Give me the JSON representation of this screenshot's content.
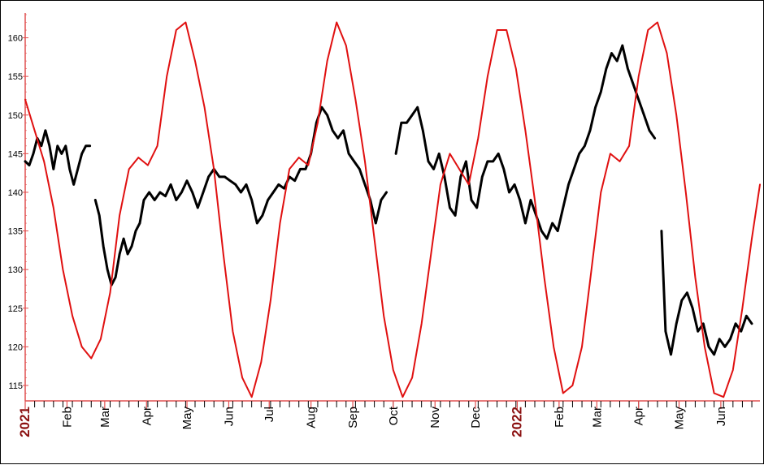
{
  "chart_data": {
    "type": "line",
    "title": "",
    "xlabel": "",
    "ylabel": "",
    "ylim": [
      113,
      163
    ],
    "yticks": [
      115,
      120,
      125,
      130,
      135,
      140,
      145,
      150,
      155,
      160
    ],
    "x_tick_labels": [
      {
        "label": "2021",
        "date": "2021-01-01",
        "year": true
      },
      {
        "label": "Feb",
        "date": "2021-02-01"
      },
      {
        "label": "Mar",
        "date": "2021-03-01"
      },
      {
        "label": "Apr",
        "date": "2021-04-01"
      },
      {
        "label": "May",
        "date": "2021-05-01"
      },
      {
        "label": "Jun",
        "date": "2021-06-01"
      },
      {
        "label": "Jul",
        "date": "2021-07-01"
      },
      {
        "label": "Aug",
        "date": "2021-08-01"
      },
      {
        "label": "Sep",
        "date": "2021-09-01"
      },
      {
        "label": "Oct",
        "date": "2021-10-01"
      },
      {
        "label": "Nov",
        "date": "2021-11-01"
      },
      {
        "label": "Dec",
        "date": "2021-12-01"
      },
      {
        "label": "2022",
        "date": "2022-01-01",
        "year": true
      },
      {
        "label": "Feb",
        "date": "2022-02-01"
      },
      {
        "label": "Mar",
        "date": "2022-03-01"
      },
      {
        "label": "Apr",
        "date": "2022-04-01"
      },
      {
        "label": "May",
        "date": "2022-05-01"
      },
      {
        "label": "Jun",
        "date": "2022-06-01"
      }
    ],
    "xlim": [
      "2021-01-01",
      "2022-06-30"
    ],
    "series": [
      {
        "color": "#000000",
        "style": "price bars",
        "points": [
          [
            "2021-01-01",
            144
          ],
          [
            "2021-01-04",
            143.5
          ],
          [
            "2021-01-07",
            145
          ],
          [
            "2021-01-10",
            147
          ],
          [
            "2021-01-13",
            146
          ],
          [
            "2021-01-16",
            148
          ],
          [
            "2021-01-19",
            146
          ],
          [
            "2021-01-22",
            143
          ],
          [
            "2021-01-25",
            146
          ],
          [
            "2021-01-28",
            145
          ],
          [
            "2021-01-31",
            146
          ],
          [
            "2021-02-03",
            143
          ],
          [
            "2021-02-06",
            141
          ],
          [
            "2021-02-09",
            143
          ],
          [
            "2021-02-12",
            145
          ],
          [
            "2021-02-15",
            146
          ],
          [
            "2021-02-18",
            146
          ],
          [
            "2021-02-20",
            null
          ],
          [
            "2021-02-22",
            139
          ],
          [
            "2021-02-25",
            137
          ],
          [
            "2021-02-28",
            133
          ],
          [
            "2021-03-03",
            130
          ],
          [
            "2021-03-06",
            128
          ],
          [
            "2021-03-09",
            129
          ],
          [
            "2021-03-12",
            132
          ],
          [
            "2021-03-15",
            134
          ],
          [
            "2021-03-18",
            132
          ],
          [
            "2021-03-21",
            133
          ],
          [
            "2021-03-24",
            135
          ],
          [
            "2021-03-27",
            136
          ],
          [
            "2021-03-30",
            139
          ],
          [
            "2021-04-03",
            140
          ],
          [
            "2021-04-07",
            139
          ],
          [
            "2021-04-11",
            140
          ],
          [
            "2021-04-15",
            139.5
          ],
          [
            "2021-04-19",
            141
          ],
          [
            "2021-04-23",
            139
          ],
          [
            "2021-04-27",
            140
          ],
          [
            "2021-05-01",
            141.5
          ],
          [
            "2021-05-05",
            140
          ],
          [
            "2021-05-09",
            138
          ],
          [
            "2021-05-13",
            140
          ],
          [
            "2021-05-17",
            142
          ],
          [
            "2021-05-21",
            143
          ],
          [
            "2021-05-25",
            142
          ],
          [
            "2021-05-29",
            142
          ],
          [
            "2021-06-02",
            141.5
          ],
          [
            "2021-06-06",
            141
          ],
          [
            "2021-06-10",
            140
          ],
          [
            "2021-06-14",
            141
          ],
          [
            "2021-06-18",
            139
          ],
          [
            "2021-06-22",
            136
          ],
          [
            "2021-06-26",
            137
          ],
          [
            "2021-06-30",
            139
          ],
          [
            "2021-07-04",
            140
          ],
          [
            "2021-07-08",
            141
          ],
          [
            "2021-07-12",
            140.5
          ],
          [
            "2021-07-16",
            142
          ],
          [
            "2021-07-20",
            141.5
          ],
          [
            "2021-07-24",
            143
          ],
          [
            "2021-07-28",
            143
          ],
          [
            "2021-08-01",
            145
          ],
          [
            "2021-08-05",
            149
          ],
          [
            "2021-08-09",
            151
          ],
          [
            "2021-08-13",
            150
          ],
          [
            "2021-08-17",
            148
          ],
          [
            "2021-08-21",
            147
          ],
          [
            "2021-08-25",
            148
          ],
          [
            "2021-08-29",
            145
          ],
          [
            "2021-09-02",
            144
          ],
          [
            "2021-09-06",
            143
          ],
          [
            "2021-09-10",
            141
          ],
          [
            "2021-09-14",
            139
          ],
          [
            "2021-09-18",
            136
          ],
          [
            "2021-09-22",
            139
          ],
          [
            "2021-09-26",
            140
          ],
          [
            "2021-09-28",
            null
          ],
          [
            "2021-10-03",
            145
          ],
          [
            "2021-10-07",
            149
          ],
          [
            "2021-10-11",
            149
          ],
          [
            "2021-10-15",
            150
          ],
          [
            "2021-10-19",
            151
          ],
          [
            "2021-10-23",
            148
          ],
          [
            "2021-10-27",
            144
          ],
          [
            "2021-10-31",
            143
          ],
          [
            "2021-11-04",
            145
          ],
          [
            "2021-11-08",
            142
          ],
          [
            "2021-11-12",
            138
          ],
          [
            "2021-11-16",
            137
          ],
          [
            "2021-11-20",
            142
          ],
          [
            "2021-11-24",
            144
          ],
          [
            "2021-11-28",
            139
          ],
          [
            "2021-12-02",
            138
          ],
          [
            "2021-12-06",
            142
          ],
          [
            "2021-12-10",
            144
          ],
          [
            "2021-12-14",
            144
          ],
          [
            "2021-12-18",
            145
          ],
          [
            "2021-12-22",
            143
          ],
          [
            "2021-12-26",
            140
          ],
          [
            "2021-12-30",
            141
          ],
          [
            "2022-01-03",
            139
          ],
          [
            "2022-01-07",
            136
          ],
          [
            "2022-01-11",
            139
          ],
          [
            "2022-01-15",
            137
          ],
          [
            "2022-01-19",
            135
          ],
          [
            "2022-01-23",
            134
          ],
          [
            "2022-01-27",
            136
          ],
          [
            "2022-01-31",
            135
          ],
          [
            "2022-02-04",
            138
          ],
          [
            "2022-02-08",
            141
          ],
          [
            "2022-02-12",
            143
          ],
          [
            "2022-02-16",
            145
          ],
          [
            "2022-02-20",
            146
          ],
          [
            "2022-02-24",
            148
          ],
          [
            "2022-02-28",
            151
          ],
          [
            "2022-03-04",
            153
          ],
          [
            "2022-03-08",
            156
          ],
          [
            "2022-03-12",
            158
          ],
          [
            "2022-03-16",
            157
          ],
          [
            "2022-03-20",
            159
          ],
          [
            "2022-03-24",
            156
          ],
          [
            "2022-03-28",
            154
          ],
          [
            "2022-04-01",
            152
          ],
          [
            "2022-04-05",
            150
          ],
          [
            "2022-04-09",
            148
          ],
          [
            "2022-04-13",
            147
          ],
          [
            "2022-04-15",
            null
          ],
          [
            "2022-04-18",
            135
          ],
          [
            "2022-04-21",
            122
          ],
          [
            "2022-04-25",
            119
          ],
          [
            "2022-04-29",
            123
          ],
          [
            "2022-05-03",
            126
          ],
          [
            "2022-05-07",
            127
          ],
          [
            "2022-05-11",
            125
          ],
          [
            "2022-05-15",
            122
          ],
          [
            "2022-05-19",
            123
          ],
          [
            "2022-05-23",
            120
          ],
          [
            "2022-05-27",
            119
          ],
          [
            "2022-05-31",
            121
          ],
          [
            "2022-06-04",
            120
          ],
          [
            "2022-06-08",
            121
          ],
          [
            "2022-06-12",
            123
          ],
          [
            "2022-06-16",
            122
          ],
          [
            "2022-06-20",
            124
          ],
          [
            "2022-06-24",
            123
          ]
        ]
      },
      {
        "color": "#e01010",
        "style": "smooth line",
        "points": [
          [
            "2021-01-01",
            152
          ],
          [
            "2021-01-08",
            148
          ],
          [
            "2021-01-15",
            144
          ],
          [
            "2021-01-22",
            138
          ],
          [
            "2021-01-29",
            130
          ],
          [
            "2021-02-05",
            124
          ],
          [
            "2021-02-12",
            120
          ],
          [
            "2021-02-19",
            118.5
          ],
          [
            "2021-02-26",
            121
          ],
          [
            "2021-03-05",
            127
          ],
          [
            "2021-03-12",
            137
          ],
          [
            "2021-03-19",
            143
          ],
          [
            "2021-03-26",
            144.5
          ],
          [
            "2021-04-02",
            143.5
          ],
          [
            "2021-04-09",
            146
          ],
          [
            "2021-04-16",
            155
          ],
          [
            "2021-04-23",
            161
          ],
          [
            "2021-04-30",
            162
          ],
          [
            "2021-05-07",
            157
          ],
          [
            "2021-05-14",
            151
          ],
          [
            "2021-05-21",
            143
          ],
          [
            "2021-05-28",
            132
          ],
          [
            "2021-06-04",
            122
          ],
          [
            "2021-06-11",
            116
          ],
          [
            "2021-06-18",
            113.5
          ],
          [
            "2021-06-25",
            118
          ],
          [
            "2021-07-02",
            126
          ],
          [
            "2021-07-09",
            136
          ],
          [
            "2021-07-16",
            143
          ],
          [
            "2021-07-23",
            144.5
          ],
          [
            "2021-07-30",
            143.5
          ],
          [
            "2021-08-06",
            149
          ],
          [
            "2021-08-13",
            157
          ],
          [
            "2021-08-20",
            162
          ],
          [
            "2021-08-27",
            159
          ],
          [
            "2021-09-03",
            152
          ],
          [
            "2021-09-10",
            144
          ],
          [
            "2021-09-17",
            134
          ],
          [
            "2021-09-24",
            124
          ],
          [
            "2021-10-01",
            117
          ],
          [
            "2021-10-08",
            113.5
          ],
          [
            "2021-10-15",
            116
          ],
          [
            "2021-10-22",
            123
          ],
          [
            "2021-10-29",
            132
          ],
          [
            "2021-11-05",
            141
          ],
          [
            "2021-11-12",
            145
          ],
          [
            "2021-11-19",
            143
          ],
          [
            "2021-11-26",
            141
          ],
          [
            "2021-12-03",
            147
          ],
          [
            "2021-12-10",
            155
          ],
          [
            "2021-12-17",
            161
          ],
          [
            "2021-12-24",
            161
          ],
          [
            "2021-12-31",
            156
          ],
          [
            "2022-01-07",
            148
          ],
          [
            "2022-01-14",
            139
          ],
          [
            "2022-01-21",
            129
          ],
          [
            "2022-01-28",
            120
          ],
          [
            "2022-02-04",
            114
          ],
          [
            "2022-02-11",
            115
          ],
          [
            "2022-02-18",
            120
          ],
          [
            "2022-02-25",
            130
          ],
          [
            "2022-03-04",
            140
          ],
          [
            "2022-03-11",
            145
          ],
          [
            "2022-03-18",
            144
          ],
          [
            "2022-03-25",
            146
          ],
          [
            "2022-04-01",
            155
          ],
          [
            "2022-04-08",
            161
          ],
          [
            "2022-04-15",
            162
          ],
          [
            "2022-04-22",
            158
          ],
          [
            "2022-04-29",
            150
          ],
          [
            "2022-05-06",
            140
          ],
          [
            "2022-05-13",
            129
          ],
          [
            "2022-05-20",
            120
          ],
          [
            "2022-05-27",
            114
          ],
          [
            "2022-06-03",
            113.5
          ],
          [
            "2022-06-10",
            117
          ],
          [
            "2022-06-17",
            125
          ],
          [
            "2022-06-24",
            134
          ],
          [
            "2022-06-30",
            141
          ]
        ]
      }
    ],
    "grid": false,
    "axis_color": "#e05050",
    "year_label_color": "#8b1010"
  }
}
